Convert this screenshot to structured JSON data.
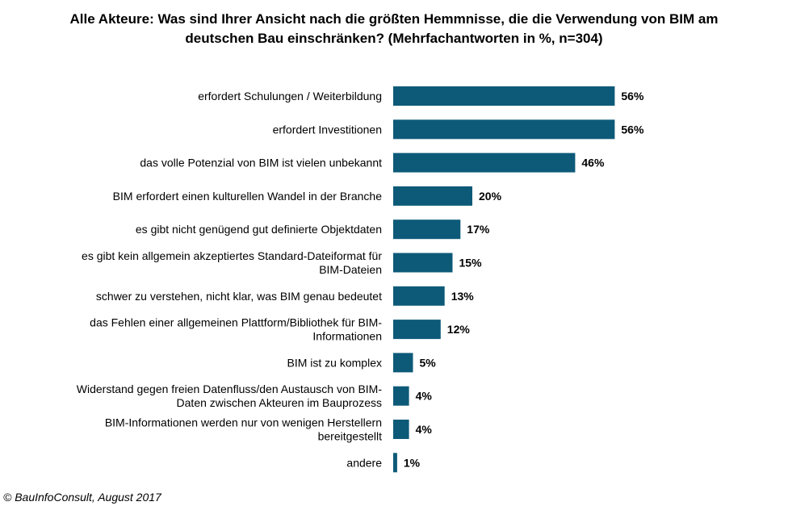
{
  "title_line1": "Alle Akteure: Was sind Ihrer Ansicht nach die größten Hemmnisse, die die Verwendung von BIM am",
  "title_line2": "deutschen Bau einschränken? (Mehrfachantworten in %, n=304)",
  "copyright": "© BauInfoConsult, August 2017",
  "bar_color": "#0d5a78",
  "chart_data": {
    "type": "bar",
    "orientation": "horizontal",
    "categories": [
      [
        "erfordert Schulungen / Weiterbildung"
      ],
      [
        "erfordert Investitionen"
      ],
      [
        "das volle Potenzial von BIM ist vielen unbekannt"
      ],
      [
        "BIM erfordert einen kulturellen Wandel in der Branche"
      ],
      [
        "es gibt nicht genügend gut definierte Objektdaten"
      ],
      [
        "es gibt kein allgemein akzeptiertes Standard-Dateiformat für",
        "BIM-Dateien"
      ],
      [
        "schwer zu verstehen, nicht klar, was BIM genau bedeutet"
      ],
      [
        "das Fehlen einer allgemeinen Plattform/Bibliothek für BIM-",
        "Informationen"
      ],
      [
        "BIM ist zu komplex"
      ],
      [
        "Widerstand gegen freien Datenfluss/den Austausch von BIM-",
        "Daten zwischen Akteuren im Bauprozess"
      ],
      [
        "BIM-Informationen werden nur von wenigen Herstellern",
        "bereitgestellt"
      ],
      [
        "andere"
      ]
    ],
    "values": [
      56,
      56,
      46,
      20,
      17,
      15,
      13,
      12,
      5,
      4,
      4,
      1
    ],
    "value_labels": [
      "56%",
      "56%",
      "46%",
      "20%",
      "17%",
      "15%",
      "13%",
      "12%",
      "5%",
      "4%",
      "4%",
      "1%"
    ]
  }
}
